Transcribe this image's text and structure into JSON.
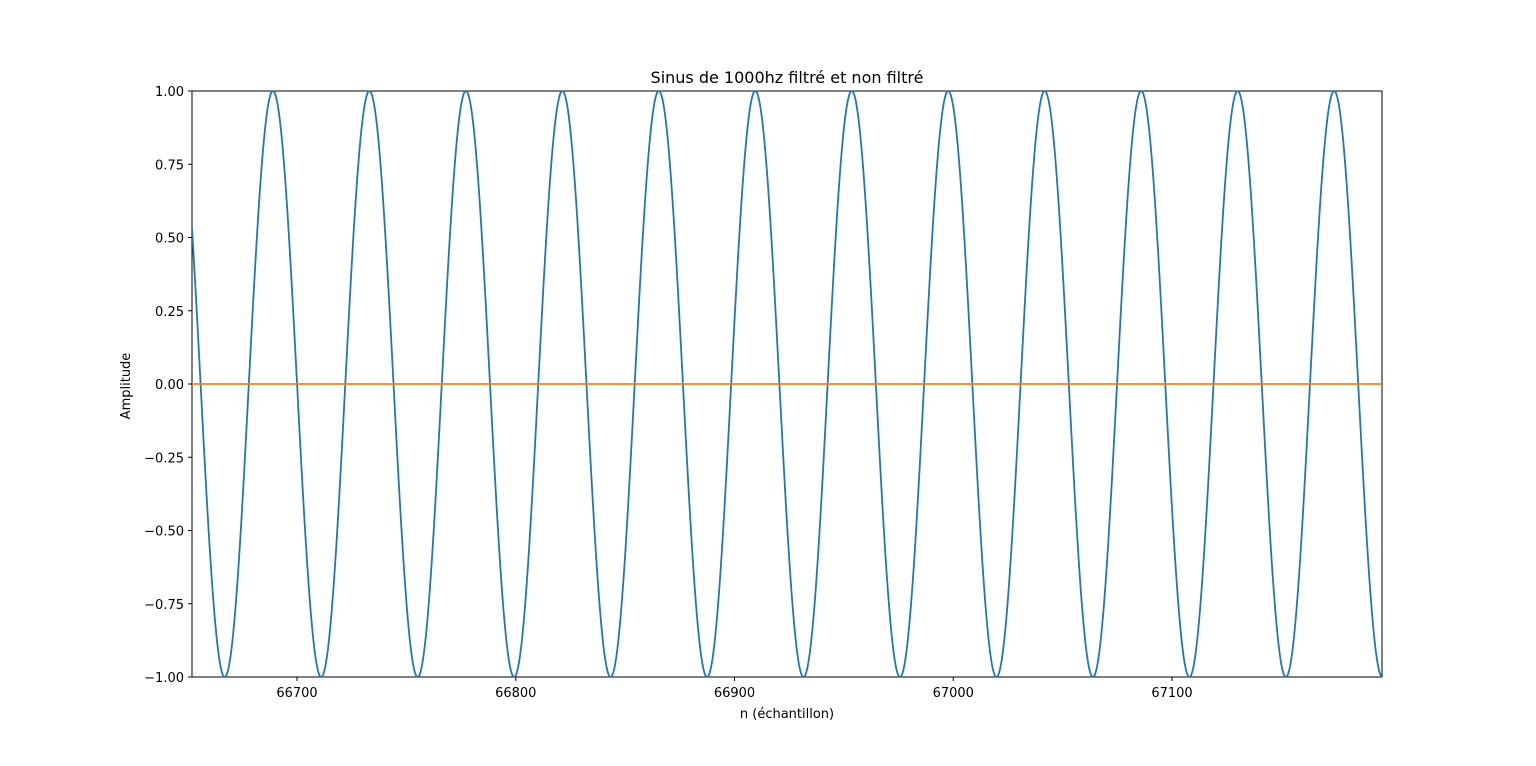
{
  "chart_data": {
    "type": "line",
    "title": "Sinus de 1000hz filtré et non filtré",
    "xlabel": "n (échantillon)",
    "ylabel": "Amplitude",
    "xlim": [
      66652,
      67196
    ],
    "ylim": [
      -1.0,
      1.0
    ],
    "xticks": [
      66700,
      66800,
      66900,
      67000,
      67100
    ],
    "yticks": [
      -1.0,
      -0.75,
      -0.5,
      -0.25,
      0.0,
      0.25,
      0.5,
      0.75,
      1.0
    ],
    "xtick_labels": [
      "66700",
      "66800",
      "66900",
      "67000",
      "67100"
    ],
    "ytick_labels": [
      "−1.00",
      "−0.75",
      "−0.50",
      "−0.25",
      "0.00",
      "0.25",
      "0.50",
      "0.75",
      "1.00"
    ],
    "grid": false,
    "series": [
      {
        "color": "#1f77b4",
        "function": "sine",
        "amplitude": 1.0,
        "period": 44.1,
        "peak_at": 66689.0,
        "x_start": 66652,
        "x_end": 67196
      },
      {
        "color": "#ff7f0e",
        "function": "constant",
        "value": 0.0,
        "x_start": 66652,
        "x_end": 67196
      }
    ]
  }
}
